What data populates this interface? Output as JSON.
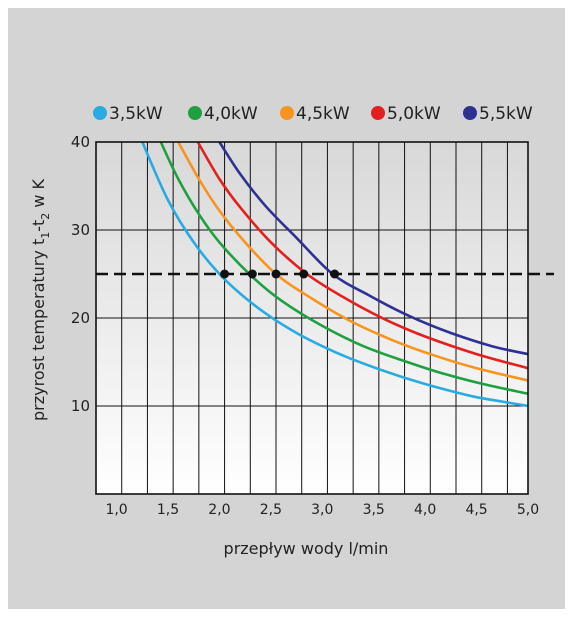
{
  "chart_data": {
    "type": "line",
    "xlabel": "przepływ wody l/min",
    "ylabel_parts": [
      "przyrost temperatury t",
      "1",
      "-t",
      "2",
      " w K"
    ],
    "xlim": [
      0.8,
      5.0
    ],
    "ylim": [
      0,
      40
    ],
    "xticks": [
      "1,0",
      "1,5",
      "2,0",
      "2,5",
      "3,0",
      "3,5",
      "4,0",
      "4,5",
      "5,0"
    ],
    "xtick_values": [
      1.0,
      1.5,
      2.0,
      2.5,
      3.0,
      3.5,
      4.0,
      4.5,
      5.0
    ],
    "yticks": [
      "10",
      "20",
      "30",
      "40"
    ],
    "ytick_values": [
      10,
      20,
      30,
      40
    ],
    "grid": true,
    "legend_position": "top",
    "reference_line": {
      "y": 25,
      "style": "dashed"
    },
    "series": [
      {
        "name": "3,5kW",
        "color": "#29abe2",
        "x": [
          1.25,
          1.5,
          1.75,
          2.0,
          2.25,
          2.5,
          2.75,
          3.0,
          3.25,
          3.5,
          3.75,
          4.0,
          4.25,
          4.5,
          4.75,
          5.0
        ],
        "y": [
          40,
          33.4,
          28.6,
          25.0,
          22.3,
          20.1,
          18.3,
          16.8,
          15.5,
          14.4,
          13.4,
          12.5,
          11.7,
          11.0,
          10.5,
          10.0
        ]
      },
      {
        "name": "4,0kW",
        "color": "#1fa040",
        "x": [
          1.43,
          1.6,
          1.8,
          2.0,
          2.3,
          2.6,
          3.0,
          3.4,
          3.8,
          4.2,
          4.6,
          5.0
        ],
        "y": [
          40,
          35.8,
          31.8,
          28.6,
          24.9,
          22.0,
          19.1,
          16.8,
          15.1,
          13.6,
          12.4,
          11.4
        ]
      },
      {
        "name": "4,5kW",
        "color": "#f7941d",
        "x": [
          1.6,
          1.8,
          2.0,
          2.25,
          2.55,
          2.9,
          3.3,
          3.7,
          4.1,
          4.5,
          5.0
        ],
        "y": [
          40,
          35.8,
          32.2,
          28.6,
          25.0,
          22.2,
          19.5,
          17.4,
          15.7,
          14.3,
          12.9
        ]
      },
      {
        "name": "5,0kW",
        "color": "#e1201f",
        "x": [
          1.79,
          2.0,
          2.2,
          2.5,
          2.85,
          3.2,
          3.6,
          4.0,
          4.5,
          5.0
        ],
        "y": [
          40,
          35.8,
          32.6,
          28.6,
          25.0,
          22.4,
          19.9,
          17.9,
          15.9,
          14.3
        ]
      },
      {
        "name": "5,5kW",
        "color": "#2e3192",
        "x": [
          2.0,
          2.2,
          2.45,
          2.75,
          3.1,
          3.45,
          3.85,
          4.25,
          4.65,
          5.0
        ],
        "y": [
          40,
          36.4,
          32.7,
          29.1,
          25.0,
          22.6,
          20.2,
          18.3,
          16.8,
          15.9
        ]
      }
    ],
    "markers": {
      "y": 25,
      "x": [
        2.05,
        2.32,
        2.55,
        2.82,
        3.12
      ]
    }
  }
}
